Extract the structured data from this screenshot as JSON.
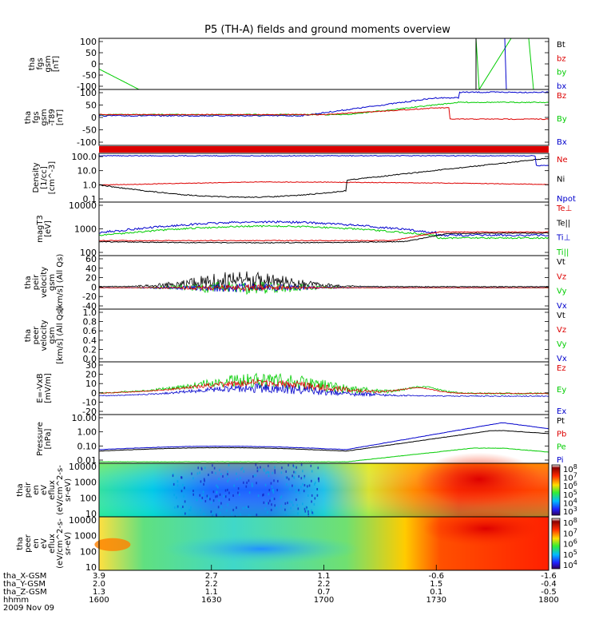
{
  "title": "P5 (TH-A) fields and ground moments overview",
  "colors": {
    "black": "#000000",
    "red": "#dd0000",
    "green": "#00cc00",
    "blue": "#0000cc"
  },
  "chart_data": [
    {
      "type": "line",
      "name": "tha_fgs_gsm",
      "ylabel": [
        "tha",
        "fgs",
        "gsm",
        "[nT]"
      ],
      "yticks": [
        "100",
        "50",
        "0",
        "-50",
        "-100"
      ],
      "ylim": [
        -100,
        100
      ],
      "legend": [
        {
          "text": "Bt",
          "color": "black"
        },
        {
          "text": "bz",
          "color": "red"
        },
        {
          "text": "by",
          "color": "green"
        },
        {
          "text": "bx",
          "color": "blue"
        }
      ]
    },
    {
      "type": "line",
      "name": "tha_fgs_gsm_t89",
      "ylabel": [
        "tha",
        "fgs",
        "gsm",
        "-T89",
        "[nT]"
      ],
      "yticks": [
        "100",
        "50",
        "0",
        "-50",
        "-100"
      ],
      "ylim": [
        -100,
        100
      ],
      "legend": [
        {
          "text": "Bz",
          "color": "red"
        },
        {
          "text": "By",
          "color": "green"
        },
        {
          "text": "Bx",
          "color": "blue"
        }
      ]
    },
    {
      "type": "line",
      "name": "density",
      "ylabel": [
        "Density",
        "[1/cc]",
        "[cm^-3]"
      ],
      "yticks": [
        "100.0",
        "10.0",
        "1.0",
        "0.1"
      ],
      "scale": "log",
      "legend": [
        {
          "text": "Ne",
          "color": "red"
        },
        {
          "text": "Ni",
          "color": "black"
        },
        {
          "text": "Npot",
          "color": "blue"
        }
      ]
    },
    {
      "type": "line",
      "name": "temperature",
      "ylabel": [
        "magT3",
        "[eV]"
      ],
      "yticks": [
        "10000",
        "1000",
        "100"
      ],
      "scale": "log",
      "legend": [
        {
          "text": "Te⊥",
          "color": "red"
        },
        {
          "text": "Te||",
          "color": "black"
        },
        {
          "text": "Ti⊥",
          "color": "blue"
        },
        {
          "text": "Ti||",
          "color": "green"
        }
      ]
    },
    {
      "type": "line",
      "name": "tha_peir_velocity",
      "ylabel": [
        "tha",
        "peir",
        "velocity",
        "gsm",
        "[km/s] (All Qs)"
      ],
      "yticks": [
        "60",
        "40",
        "20",
        "0",
        "-20",
        "-40"
      ],
      "ylim": [
        -40,
        60
      ],
      "legend": [
        {
          "text": "Vt",
          "color": "black"
        },
        {
          "text": "Vz",
          "color": "red"
        },
        {
          "text": "Vy",
          "color": "green"
        },
        {
          "text": "Vx",
          "color": "blue"
        }
      ]
    },
    {
      "type": "line",
      "name": "tha_peer_velocity",
      "ylabel": [
        "tha",
        "peer",
        "velocity",
        "gsm",
        "[km/s] (All Qs)"
      ],
      "yticks": [
        "1.0",
        "0.8",
        "0.6",
        "0.4",
        "0.2",
        "0.0"
      ],
      "ylim": [
        0,
        1
      ],
      "legend": [
        {
          "text": "Vt",
          "color": "black"
        },
        {
          "text": "Vz",
          "color": "red"
        },
        {
          "text": "Vy",
          "color": "green"
        },
        {
          "text": "Vx",
          "color": "blue"
        }
      ]
    },
    {
      "type": "line",
      "name": "efield",
      "ylabel": [
        "E=-VxB",
        "[mV/m]"
      ],
      "yticks": [
        "30",
        "20",
        "10",
        "0",
        "-10",
        "-20"
      ],
      "ylim": [
        -20,
        30
      ],
      "legend": [
        {
          "text": "Ez",
          "color": "red"
        },
        {
          "text": "Ey",
          "color": "green"
        },
        {
          "text": "Ex",
          "color": "blue"
        }
      ]
    },
    {
      "type": "line",
      "name": "pressure",
      "ylabel": [
        "Pressure",
        "[nPa]"
      ],
      "yticks": [
        "10.00",
        "1.00",
        "0.10",
        "0.01"
      ],
      "scale": "log",
      "legend": [
        {
          "text": "Pt",
          "color": "black"
        },
        {
          "text": "Pb",
          "color": "red"
        },
        {
          "text": "Pe",
          "color": "green"
        },
        {
          "text": "Pi",
          "color": "blue"
        }
      ]
    },
    {
      "type": "heatmap",
      "name": "tha_peir_en_eflux",
      "ylabel": [
        "tha",
        "peir",
        "en",
        "eV",
        "eflux",
        "(eV/cm^2-s-",
        "sr-eV)"
      ],
      "yticks": [
        "10000",
        "1000",
        "100",
        "10"
      ],
      "colorbar": [
        "10^8",
        "10^7",
        "10^6",
        "10^5",
        "10^4",
        "10^3"
      ]
    },
    {
      "type": "heatmap",
      "name": "tha_peer_en_eflux",
      "ylabel": [
        "tha",
        "peer",
        "en",
        "eV",
        "eflux",
        "(eV/cm^2-s-",
        "sr-eV)"
      ],
      "yticks": [
        "10000",
        "1000",
        "100",
        "10"
      ],
      "colorbar": [
        "10^8",
        "10^7",
        "10^6",
        "10^5",
        "10^4"
      ]
    }
  ],
  "x_axis": {
    "row_labels": [
      "tha_X-GSM",
      "tha_Y-GSM",
      "tha_Z-GSM",
      "hhmm",
      "2009 Nov 09"
    ],
    "ticks": [
      {
        "x": "3.9",
        "y": "2.0",
        "z": "1.3",
        "hhmm": "1600"
      },
      {
        "x": "2.7",
        "y": "2.2",
        "z": "1.1",
        "hhmm": "1630"
      },
      {
        "x": "1.1",
        "y": "2.2",
        "z": "0.7",
        "hhmm": "1700"
      },
      {
        "x": "-0.6",
        "y": "1.5",
        "z": "0.1",
        "hhmm": "1730"
      },
      {
        "x": "-1.6",
        "y": "-0.4",
        "z": "-0.5",
        "hhmm": "1800"
      }
    ]
  }
}
